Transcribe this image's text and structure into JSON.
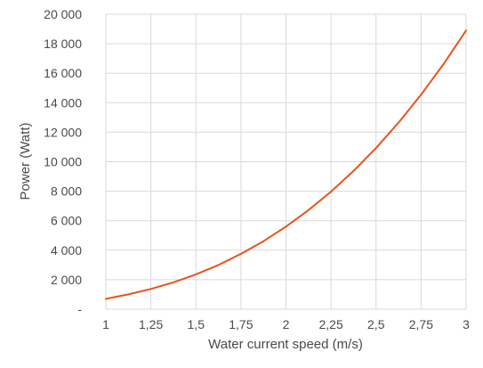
{
  "chart_data": {
    "type": "line",
    "title": "",
    "xlabel": "Water current speed (m/s)",
    "ylabel": "Power (Watt)",
    "xlim": [
      1,
      3
    ],
    "ylim": [
      0,
      20000
    ],
    "grid": true,
    "x_ticks": [
      "1",
      "1,25",
      "1,5",
      "1,75",
      "2",
      "2,25",
      "2,5",
      "2,75",
      "3"
    ],
    "x_tick_values": [
      1,
      1.25,
      1.5,
      1.75,
      2,
      2.25,
      2.5,
      2.75,
      3
    ],
    "y_ticks": [
      "-",
      "2 000",
      "4 000",
      "6 000",
      "8 000",
      "10 000",
      "12 000",
      "14 000",
      "16 000",
      "18 000",
      "20 000"
    ],
    "y_tick_values": [
      0,
      2000,
      4000,
      6000,
      8000,
      10000,
      12000,
      14000,
      16000,
      18000,
      20000
    ],
    "series": [
      {
        "color": "#e8531f",
        "x": [
          1,
          1.125,
          1.25,
          1.375,
          1.5,
          1.625,
          1.75,
          1.875,
          2,
          2.125,
          2.25,
          2.375,
          2.5,
          2.625,
          2.75,
          2.875,
          3
        ],
        "y": [
          700,
          1000,
          1370,
          1820,
          2360,
          3000,
          3750,
          4610,
          5600,
          6720,
          7970,
          9370,
          10930,
          12650,
          14550,
          16620,
          18900
        ]
      }
    ]
  }
}
